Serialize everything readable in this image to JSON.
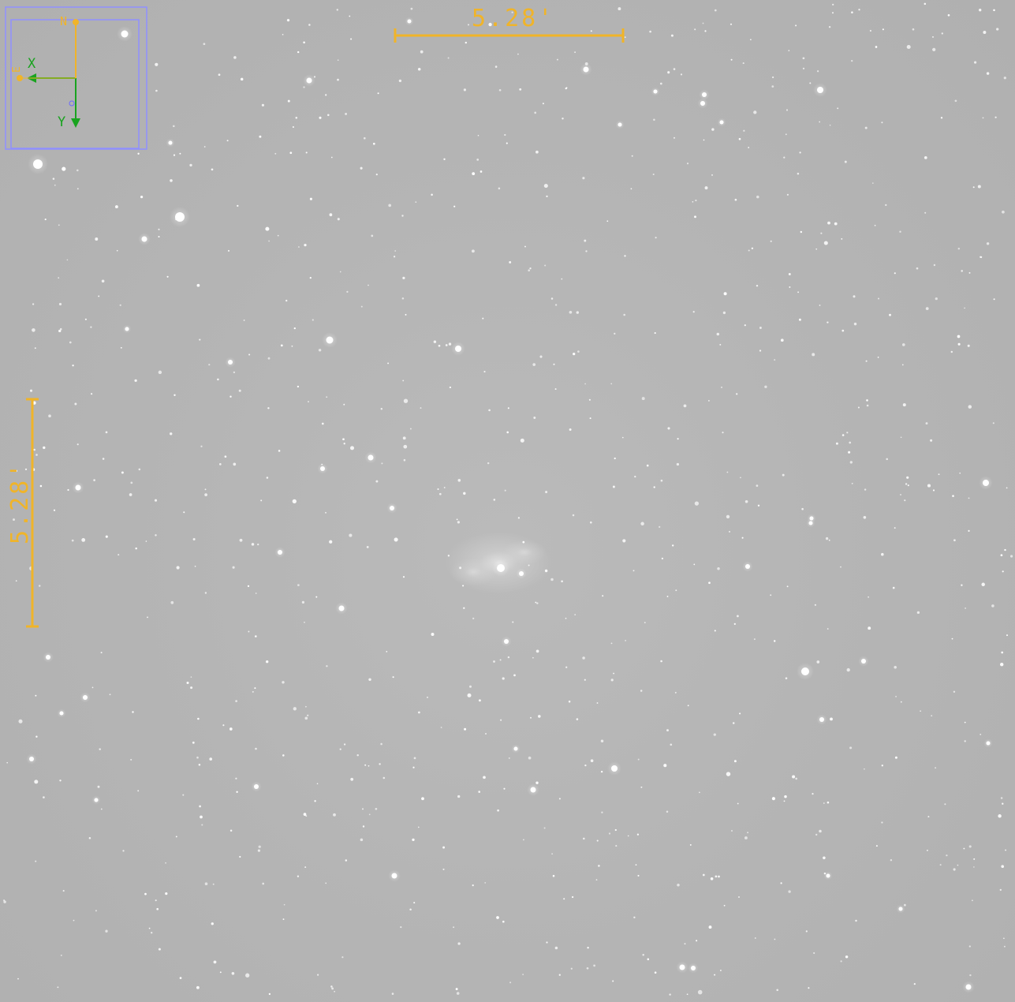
{
  "image": {
    "background_color": "#b4b4b4",
    "star_color": "#ffffff"
  },
  "scale_bars": {
    "color": "#f0b429",
    "horizontal_label": "5.28'",
    "vertical_label": "5.28'"
  },
  "compass": {
    "box_color": "#8f8fff",
    "pixel_axes_color": "#19a31f",
    "sky_axes_color": "#f0b429",
    "x_label": "X",
    "y_label": "Y",
    "north_label": "N",
    "east_label": "E"
  }
}
